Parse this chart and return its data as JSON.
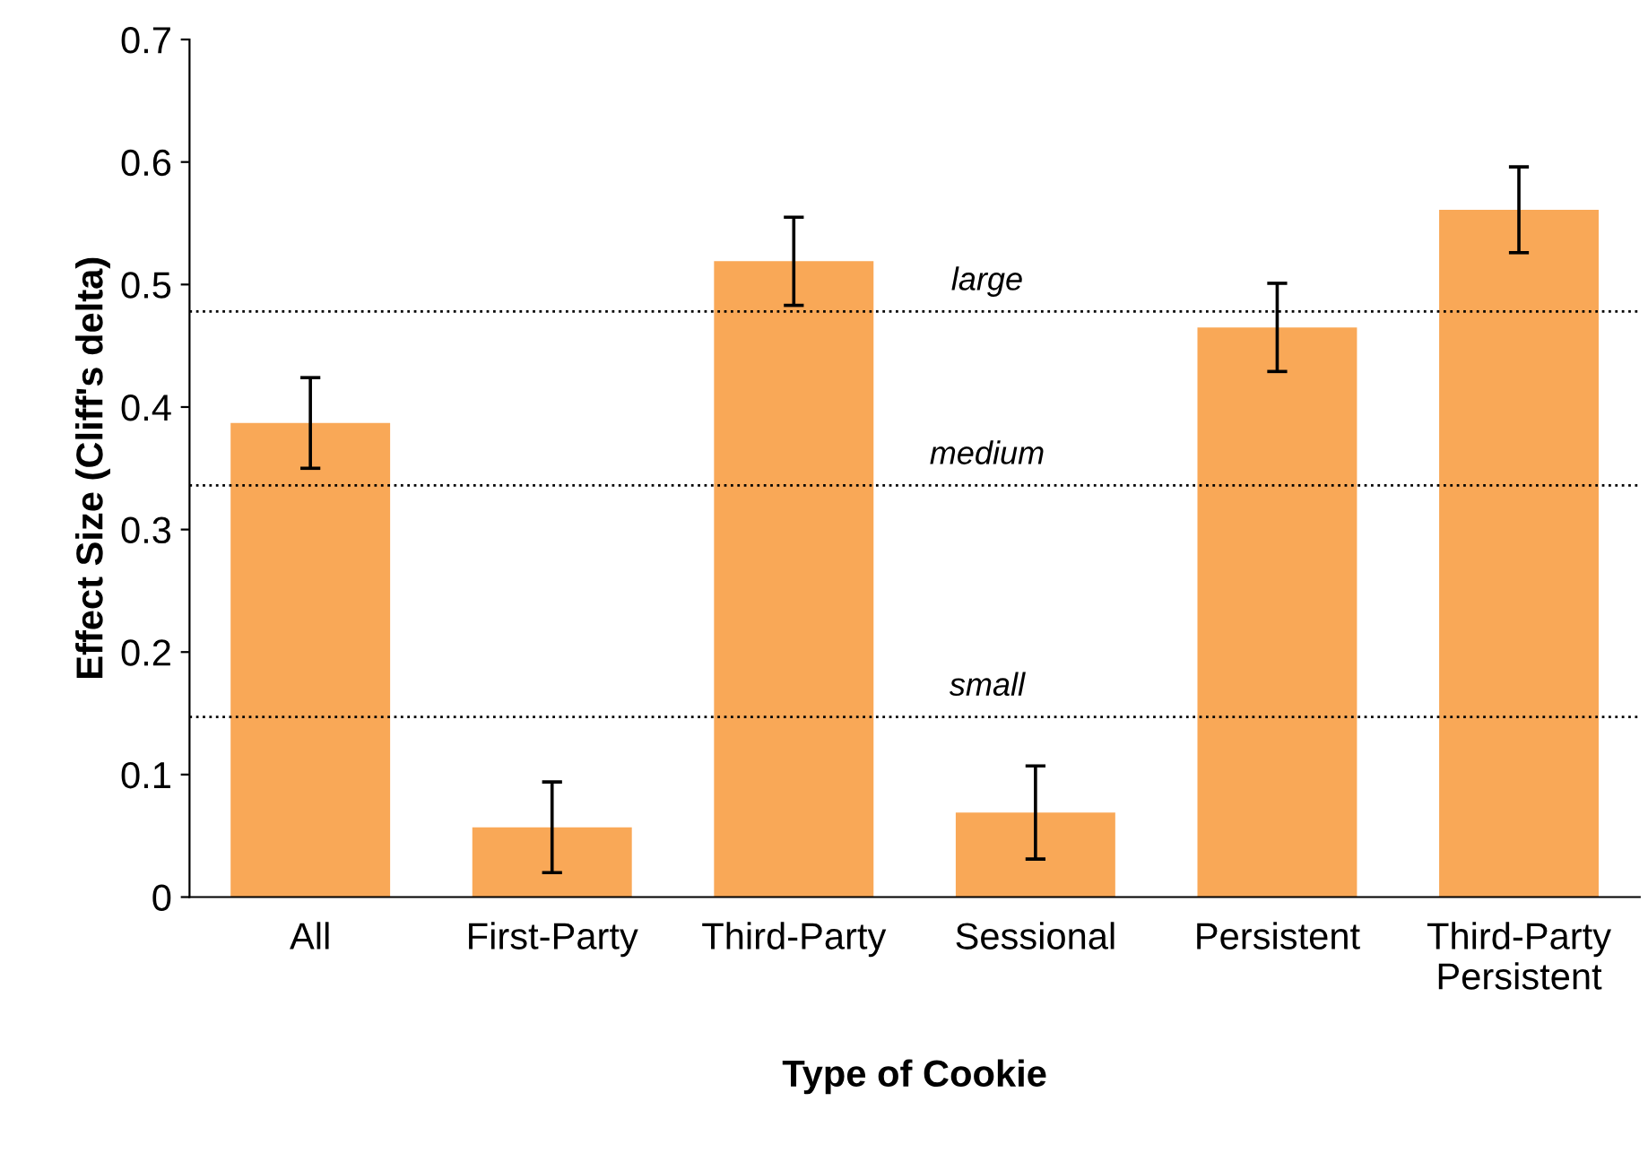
{
  "chart_data": {
    "type": "bar",
    "xlabel": "Type of Cookie",
    "ylabel": "Effect Size (Cliff's delta)",
    "categories": [
      "All",
      "First-Party",
      "Third-Party",
      "Sessional",
      "Persistent",
      "Third-Party\nPersistent"
    ],
    "values": [
      0.387,
      0.057,
      0.519,
      0.069,
      0.465,
      0.561
    ],
    "errors": [
      0.037,
      0.037,
      0.036,
      0.038,
      0.036,
      0.035
    ],
    "color": "#f9a857",
    "ylim": [
      0,
      0.7
    ],
    "yticks": [
      {
        "value": 0,
        "label": "0"
      },
      0.1,
      0.2,
      0.3,
      0.4,
      0.5,
      0.6,
      0.7
    ],
    "grid": false,
    "legend": false,
    "ref_lines": [
      {
        "axis": "y",
        "value": 0.478,
        "label": "large",
        "color": "#000000",
        "line_style": "dotted"
      },
      {
        "axis": "y",
        "value": 0.336,
        "label": "medium",
        "color": "#000000",
        "line_style": "dotted"
      },
      {
        "axis": "y",
        "value": 0.147,
        "label": "small",
        "color": "#000000",
        "line_style": "dotted"
      }
    ]
  }
}
